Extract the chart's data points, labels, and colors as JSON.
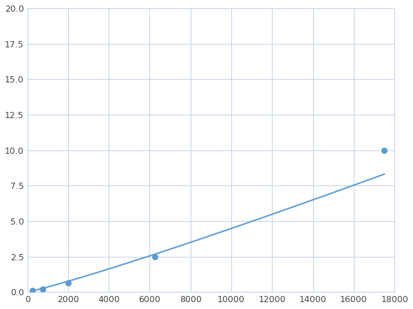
{
  "x": [
    250,
    750,
    2000,
    6250,
    17500
  ],
  "y": [
    0.1,
    0.2,
    0.65,
    2.5,
    10.0
  ],
  "line_color": "#5b9bd5",
  "marker_color": "#5b9bd5",
  "marker_size": 6,
  "xlim": [
    0,
    18000
  ],
  "ylim": [
    0,
    20.0
  ],
  "xticks": [
    0,
    2000,
    4000,
    6000,
    8000,
    10000,
    12000,
    14000,
    16000,
    18000
  ],
  "yticks": [
    0.0,
    2.5,
    5.0,
    7.5,
    10.0,
    12.5,
    15.0,
    17.5,
    20.0
  ],
  "grid_color": "#c8d4e3",
  "background_color": "#ffffff",
  "figsize": [
    6.0,
    4.5
  ],
  "dpi": 100
}
